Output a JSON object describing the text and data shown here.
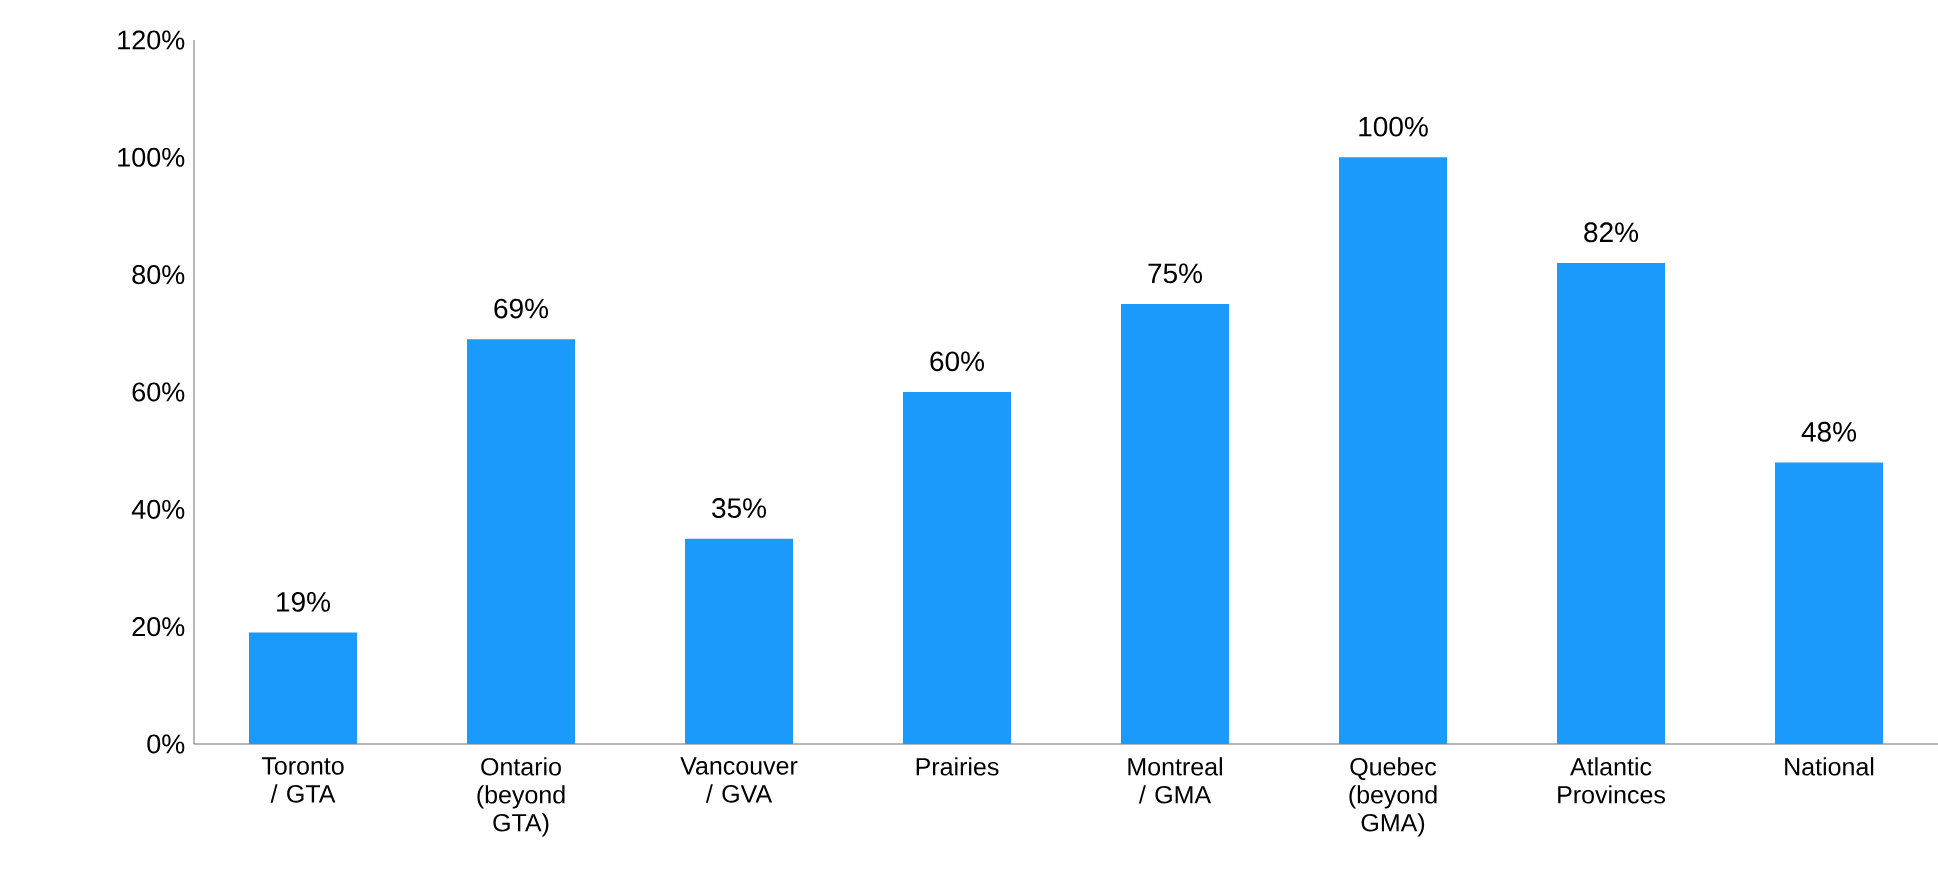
{
  "chart_data": {
    "type": "bar",
    "categories": [
      "Toronto / GTA",
      "Ontario (beyond GTA)",
      "Vancouver / GVA",
      "Prairies",
      "Montreal / GMA",
      "Quebec (beyond GMA)",
      "Atlantic Provinces",
      "National"
    ],
    "values": [
      19,
      69,
      35,
      60,
      75,
      100,
      82,
      48
    ],
    "value_labels": [
      "19%",
      "69%",
      "35%",
      "60%",
      "75%",
      "100%",
      "82%",
      "48%"
    ],
    "color": "#1a9bfc",
    "ylim": [
      0,
      120
    ],
    "yticks": [
      {
        "value": 0,
        "label": "0%"
      },
      {
        "value": 20,
        "label": "20%"
      },
      {
        "value": 40,
        "label": "40%"
      },
      {
        "value": 60,
        "label": "60%"
      },
      {
        "value": 80,
        "label": "80%"
      },
      {
        "value": 100,
        "label": "100%"
      },
      {
        "value": 120,
        "label": "120%"
      }
    ],
    "grid": false
  }
}
